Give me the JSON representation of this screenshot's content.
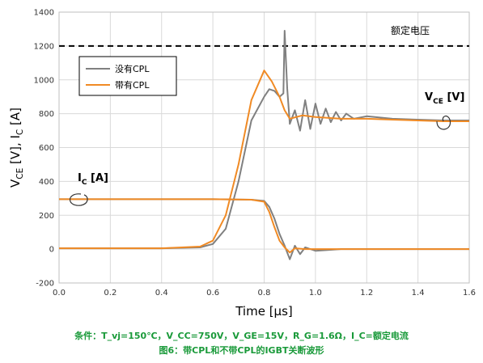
{
  "chart_data": {
    "type": "line",
    "xlabel": "Time [μs]",
    "ylabel": "V_CE [V], I_C [A]",
    "xlim": [
      0,
      1.6
    ],
    "ylim": [
      -200,
      1400
    ],
    "x_ticks": [
      "0.0",
      "0.2",
      "0.4",
      "0.6",
      "0.8",
      "1.0",
      "1.2",
      "1.4",
      "1.6"
    ],
    "y_ticks": [
      "-200",
      "0",
      "200",
      "400",
      "600",
      "800",
      "1000",
      "1200",
      "1400"
    ],
    "legend_position": "upper-left",
    "reference_line": {
      "y": 1200,
      "label": "额定电压",
      "style": "dashed"
    },
    "annotations": {
      "ic_label": "I_C [A]",
      "vce_label": "V_CE [V]"
    },
    "series": [
      {
        "name": "没有CPL",
        "color": "#808080",
        "vce": [
          [
            0,
            5
          ],
          [
            0.2,
            5
          ],
          [
            0.4,
            5
          ],
          [
            0.55,
            10
          ],
          [
            0.6,
            30
          ],
          [
            0.65,
            120
          ],
          [
            0.7,
            400
          ],
          [
            0.75,
            760
          ],
          [
            0.8,
            900
          ],
          [
            0.82,
            945
          ],
          [
            0.84,
            935
          ],
          [
            0.86,
            900
          ],
          [
            0.875,
            920
          ],
          [
            0.88,
            1290
          ],
          [
            0.89,
            950
          ],
          [
            0.9,
            740
          ],
          [
            0.92,
            820
          ],
          [
            0.94,
            700
          ],
          [
            0.96,
            880
          ],
          [
            0.98,
            710
          ],
          [
            1.0,
            860
          ],
          [
            1.02,
            740
          ],
          [
            1.04,
            830
          ],
          [
            1.06,
            750
          ],
          [
            1.08,
            810
          ],
          [
            1.1,
            760
          ],
          [
            1.12,
            800
          ],
          [
            1.15,
            770
          ],
          [
            1.2,
            785
          ],
          [
            1.3,
            770
          ],
          [
            1.4,
            765
          ],
          [
            1.5,
            760
          ],
          [
            1.6,
            760
          ]
        ],
        "ic": [
          [
            0,
            295
          ],
          [
            0.2,
            295
          ],
          [
            0.4,
            295
          ],
          [
            0.6,
            295
          ],
          [
            0.75,
            292
          ],
          [
            0.8,
            285
          ],
          [
            0.82,
            250
          ],
          [
            0.84,
            180
          ],
          [
            0.86,
            90
          ],
          [
            0.88,
            20
          ],
          [
            0.9,
            -60
          ],
          [
            0.92,
            20
          ],
          [
            0.94,
            -30
          ],
          [
            0.96,
            10
          ],
          [
            1.0,
            -10
          ],
          [
            1.1,
            0
          ],
          [
            1.2,
            0
          ],
          [
            1.6,
            0
          ]
        ]
      },
      {
        "name": "带有CPL",
        "color": "#f08a24",
        "vce": [
          [
            0,
            5
          ],
          [
            0.2,
            5
          ],
          [
            0.4,
            5
          ],
          [
            0.55,
            15
          ],
          [
            0.6,
            50
          ],
          [
            0.65,
            200
          ],
          [
            0.7,
            500
          ],
          [
            0.75,
            880
          ],
          [
            0.8,
            1055
          ],
          [
            0.83,
            990
          ],
          [
            0.86,
            900
          ],
          [
            0.88,
            820
          ],
          [
            0.9,
            770
          ],
          [
            0.95,
            790
          ],
          [
            1.0,
            780
          ],
          [
            1.1,
            770
          ],
          [
            1.2,
            770
          ],
          [
            1.3,
            765
          ],
          [
            1.4,
            760
          ],
          [
            1.5,
            755
          ],
          [
            1.6,
            755
          ]
        ],
        "ic": [
          [
            0,
            295
          ],
          [
            0.2,
            295
          ],
          [
            0.4,
            295
          ],
          [
            0.6,
            295
          ],
          [
            0.75,
            292
          ],
          [
            0.8,
            280
          ],
          [
            0.82,
            220
          ],
          [
            0.84,
            130
          ],
          [
            0.86,
            50
          ],
          [
            0.88,
            10
          ],
          [
            0.9,
            -20
          ],
          [
            0.92,
            5
          ],
          [
            0.96,
            0
          ],
          [
            1.0,
            0
          ],
          [
            1.6,
            0
          ]
        ]
      }
    ]
  },
  "captions": {
    "line1": "条件：T_vj=150℃，V_CC=750V，V_GE=15V，R_G=1.6Ω，I_C=额定电流",
    "line2": "图6：带CPL和不带CPL的IGBT关断波形"
  }
}
